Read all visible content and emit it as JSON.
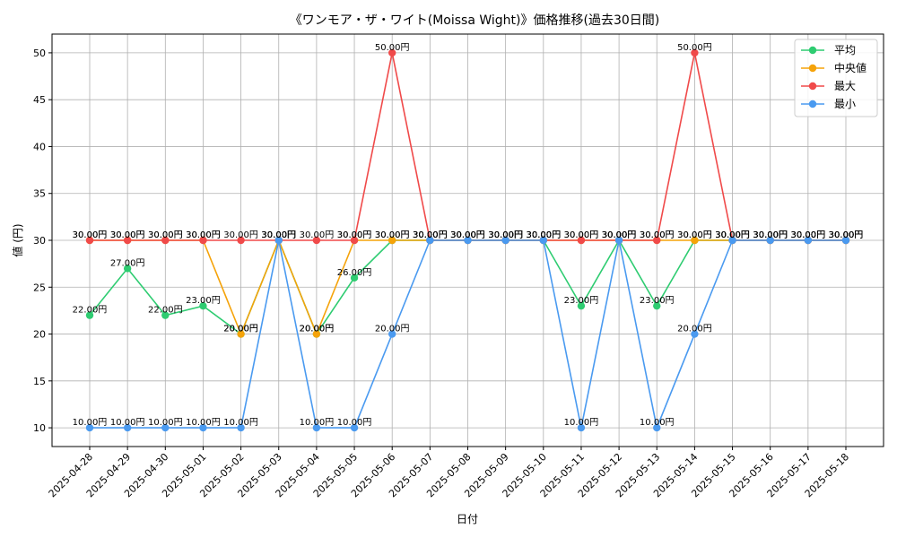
{
  "chart_data": {
    "type": "line",
    "title": "《ワンモア・ザ・ワイト(Moissa Wight)》価格推移(過去30日間)",
    "xlabel": "日付",
    "ylabel": "値 (円)",
    "ylim": [
      8,
      52
    ],
    "yticks": [
      10,
      15,
      20,
      25,
      30,
      35,
      40,
      45,
      50
    ],
    "grid": true,
    "legend_position": "top-right",
    "label_suffix": "円",
    "categories": [
      "2025-04-28",
      "2025-04-29",
      "2025-04-30",
      "2025-05-01",
      "2025-05-02",
      "2025-05-03",
      "2025-05-04",
      "2025-05-05",
      "2025-05-06",
      "2025-05-07",
      "2025-05-08",
      "2025-05-09",
      "2025-05-10",
      "2025-05-11",
      "2025-05-12",
      "2025-05-13",
      "2025-05-14",
      "2025-05-15",
      "2025-05-16",
      "2025-05-17",
      "2025-05-18"
    ],
    "series": [
      {
        "name": "平均",
        "color": "#2ecc71",
        "values": [
          22,
          27,
          22,
          23,
          20,
          30,
          20,
          26,
          30,
          30,
          30,
          30,
          30,
          23,
          30,
          23,
          30,
          30,
          30,
          30,
          30
        ]
      },
      {
        "name": "中央値",
        "color": "#f5a30a",
        "values": [
          30,
          30,
          30,
          30,
          20,
          30,
          20,
          30,
          30,
          30,
          30,
          30,
          30,
          30,
          30,
          30,
          30,
          30,
          30,
          30,
          30
        ]
      },
      {
        "name": "最大",
        "color": "#f04a4a",
        "values": [
          30,
          30,
          30,
          30,
          30,
          30,
          30,
          30,
          50,
          30,
          30,
          30,
          30,
          30,
          30,
          30,
          50,
          30,
          30,
          30,
          30
        ]
      },
      {
        "name": "最小",
        "color": "#4a9af0",
        "values": [
          10,
          10,
          10,
          10,
          10,
          30,
          10,
          10,
          20,
          30,
          30,
          30,
          30,
          10,
          30,
          10,
          20,
          30,
          30,
          30,
          30
        ]
      }
    ]
  }
}
